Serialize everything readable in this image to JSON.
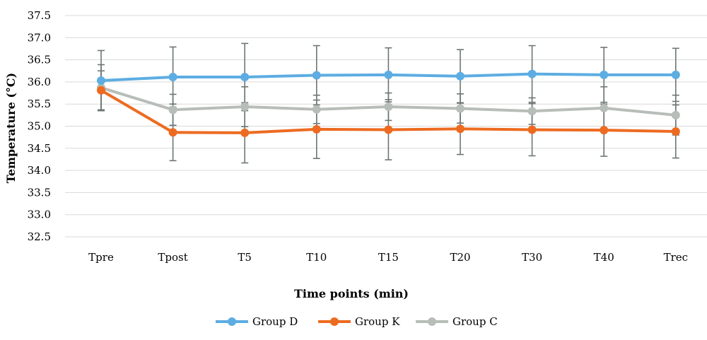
{
  "chart_data": {
    "type": "line",
    "title": "",
    "xlabel": "Time points (min)",
    "ylabel": "Temperature (°C)",
    "categories": [
      "Tpre",
      "Tpost",
      "T5",
      "T10",
      "T15",
      "T20",
      "T30",
      "T40",
      "Trec"
    ],
    "ylim": [
      32.5,
      37.5
    ],
    "yticks": [
      "32.5",
      "33.0",
      "33.5",
      "34.0",
      "34.5",
      "35.0",
      "35.5",
      "36.0",
      "36.5",
      "37.0",
      "37.5"
    ],
    "grid": true,
    "legend_position": "bottom",
    "series": [
      {
        "name": "Group D",
        "color": "#5dade2",
        "values": [
          36.03,
          36.11,
          36.11,
          36.15,
          36.16,
          36.13,
          36.18,
          36.16,
          36.16
        ],
        "error": [
          0.68,
          0.68,
          0.76,
          0.67,
          0.61,
          0.6,
          0.64,
          0.62,
          0.6
        ]
      },
      {
        "name": "Group K",
        "color": "#ed6b21",
        "values": [
          35.81,
          34.86,
          34.85,
          34.93,
          34.92,
          34.94,
          34.92,
          34.91,
          34.88
        ],
        "error": [
          0.44,
          0.64,
          0.68,
          0.66,
          0.68,
          0.58,
          0.59,
          0.59,
          0.6
        ]
      },
      {
        "name": "Group C",
        "color": "#b7bdb8",
        "values": [
          35.87,
          35.37,
          35.44,
          35.38,
          35.44,
          35.4,
          35.34,
          35.41,
          35.25
        ],
        "error": [
          0.52,
          0.35,
          0.45,
          0.32,
          0.31,
          0.33,
          0.3,
          0.48,
          0.45
        ]
      }
    ]
  }
}
